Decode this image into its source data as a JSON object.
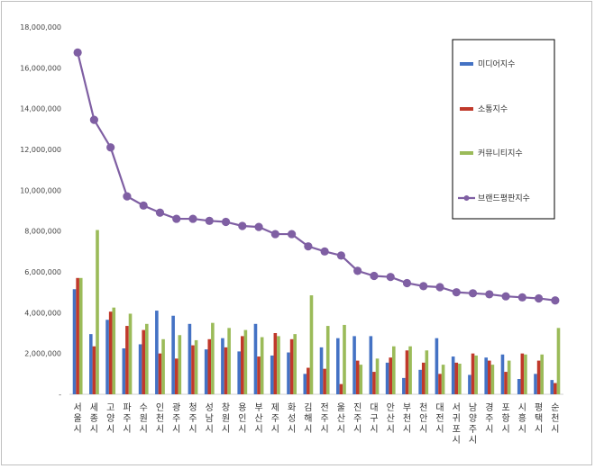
{
  "chart_data": {
    "type": "bar",
    "ylim": [
      0,
      18000000
    ],
    "yticks": [
      "-",
      "2,000,000",
      "4,000,000",
      "6,000,000",
      "8,000,000",
      "10,000,000",
      "12,000,000",
      "14,000,000",
      "16,000,000",
      "18,000,000"
    ],
    "categories": [
      "서울시",
      "세종시",
      "고양시",
      "파주시",
      "수원시",
      "인천시",
      "광주시",
      "청주시",
      "성남시",
      "창원시",
      "용인시",
      "부산시",
      "제주시",
      "화성시",
      "김해시",
      "전주시",
      "울산시",
      "진주시",
      "대구시",
      "안산시",
      "부천시",
      "천안시",
      "대전시",
      "서귀포시",
      "남양주시",
      "경주시",
      "포항시",
      "시흥시",
      "평택시",
      "순천시"
    ],
    "series": [
      {
        "name": "미디어지수",
        "type": "bar",
        "color": "#4472c4",
        "values": [
          5150000,
          2950000,
          3650000,
          2250000,
          2450000,
          4100000,
          3850000,
          3450000,
          2200000,
          2750000,
          2100000,
          3450000,
          1900000,
          2050000,
          1000000,
          2300000,
          2750000,
          2850000,
          2850000,
          1550000,
          800000,
          1200000,
          2750000,
          1850000,
          950000,
          1800000,
          1950000,
          750000,
          1000000,
          700000
        ]
      },
      {
        "name": "소통지수",
        "type": "bar",
        "color": "#c0392b",
        "values": [
          5700000,
          2350000,
          4050000,
          3350000,
          3150000,
          2000000,
          1750000,
          2400000,
          2700000,
          2300000,
          2850000,
          1850000,
          3000000,
          2700000,
          1300000,
          1250000,
          500000,
          1650000,
          1100000,
          1800000,
          2150000,
          1550000,
          1000000,
          1550000,
          2000000,
          1650000,
          1100000,
          2000000,
          1650000,
          550000
        ]
      },
      {
        "name": "커뮤니티지수",
        "type": "bar",
        "color": "#9bbb59",
        "values": [
          5700000,
          8050000,
          4250000,
          3950000,
          3450000,
          2700000,
          2900000,
          2650000,
          3500000,
          3250000,
          3150000,
          2800000,
          2850000,
          2950000,
          4850000,
          3350000,
          3400000,
          1450000,
          1750000,
          2350000,
          2350000,
          2150000,
          1450000,
          1500000,
          1900000,
          1450000,
          1650000,
          1950000,
          1950000,
          3250000
        ]
      },
      {
        "name": "브랜드평판지수",
        "type": "line",
        "color": "#7f5fa3",
        "values": [
          16750000,
          13450000,
          12100000,
          9700000,
          9250000,
          8900000,
          8600000,
          8600000,
          8500000,
          8450000,
          8250000,
          8200000,
          7850000,
          7850000,
          7250000,
          7000000,
          6800000,
          6050000,
          5800000,
          5750000,
          5450000,
          5300000,
          5250000,
          5000000,
          4950000,
          4900000,
          4800000,
          4750000,
          4700000,
          4600000
        ]
      }
    ],
    "legend_position": "right",
    "grid": false
  }
}
